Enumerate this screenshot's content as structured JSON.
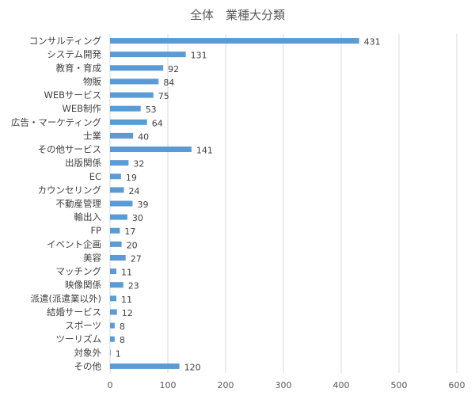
{
  "chart_data": {
    "type": "bar",
    "orientation": "horizontal",
    "title": "全体　業種大分類",
    "xlabel": "",
    "ylabel": "",
    "xlim": [
      0,
      600
    ],
    "xticks": [
      0,
      100,
      200,
      300,
      400,
      500,
      600
    ],
    "grid": true,
    "legend": "none",
    "bar_color": "#5B9BD5",
    "categories": [
      "コンサルティング",
      "システム開発",
      "教育・育成",
      "物販",
      "WEBサービス",
      "WEB制作",
      "広告・マーケティング",
      "士業",
      "その他サービス",
      "出版関係",
      "EC",
      "カウンセリング",
      "不動産管理",
      "輸出入",
      "FP",
      "イベント企画",
      "美容",
      "マッチング",
      "映像関係",
      "派遣(派遣業以外)",
      "結婚サービス",
      "スポーツ",
      "ツーリズム",
      "対象外",
      "その他"
    ],
    "values": [
      431,
      131,
      92,
      84,
      75,
      53,
      64,
      40,
      141,
      32,
      19,
      24,
      39,
      30,
      17,
      20,
      27,
      11,
      23,
      11,
      12,
      8,
      8,
      1,
      120
    ],
    "muted_category_color": "#A6A6A6"
  }
}
